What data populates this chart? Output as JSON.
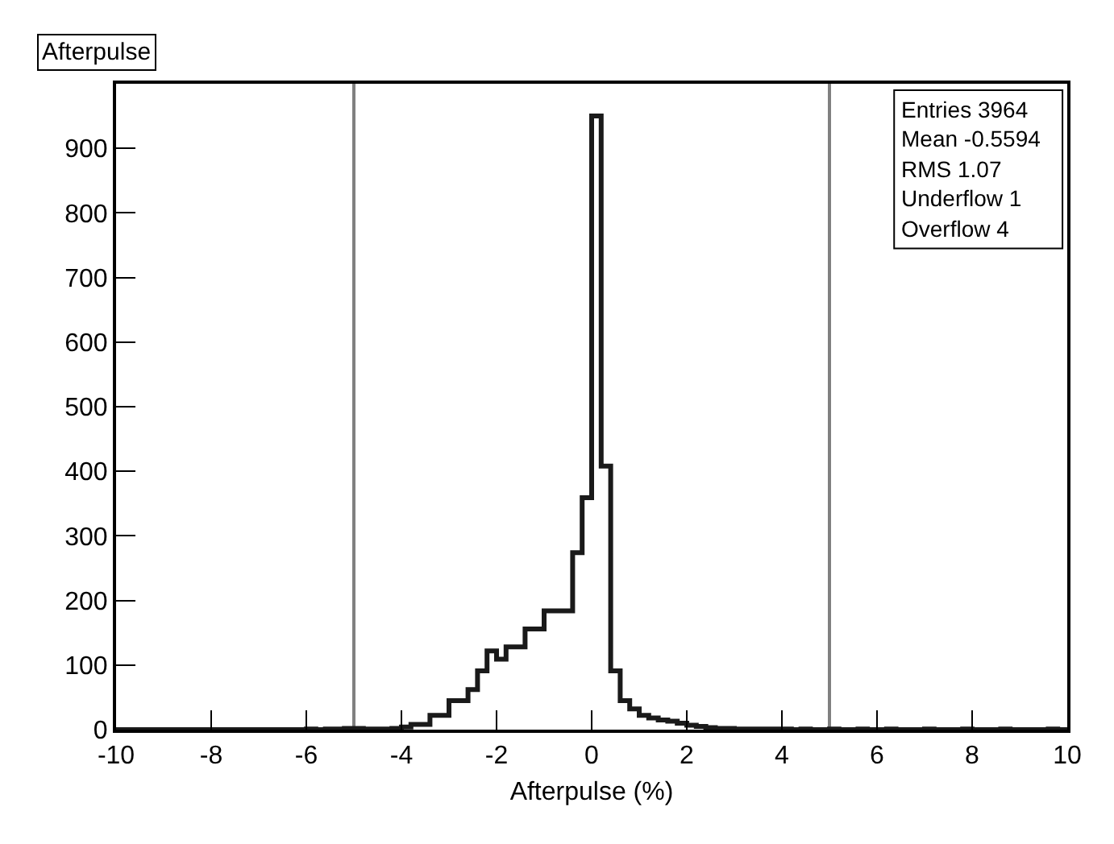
{
  "chart_data": {
    "type": "histogram",
    "title": "Afterpulse",
    "xlabel": "Afterpulse (%)",
    "bins": [
      -10,
      -9.8,
      -9.6,
      -9.4,
      -9.2,
      -9,
      -8.8,
      -8.6,
      -8.4,
      -8.2,
      -8,
      -7.8,
      -7.6,
      -7.4,
      -7.2,
      -7,
      -6.8,
      -6.6,
      -6.4,
      -6.2,
      -6,
      -5.8,
      -5.6,
      -5.4,
      -5.2,
      -5,
      -4.8,
      -4.6,
      -4.4,
      -4.2,
      -4,
      -3.8,
      -3.6,
      -3.4,
      -3.2,
      -3,
      -2.8,
      -2.6,
      -2.4,
      -2.2,
      -2,
      -1.8,
      -1.6,
      -1.4,
      -1.2,
      -1,
      -0.8,
      -0.6,
      -0.4,
      -0.2,
      0,
      0.2,
      0.4,
      0.6,
      0.8,
      1,
      1.2,
      1.4,
      1.6,
      1.8,
      2,
      2.2,
      2.4,
      2.6,
      2.8,
      3,
      3.2,
      3.4,
      3.6,
      3.8,
      4,
      4.2,
      4.4,
      4.6,
      4.8,
      5,
      5.2,
      5.4,
      5.6,
      5.8,
      6,
      6.2,
      6.4,
      6.6,
      6.8,
      7,
      7.2,
      7.4,
      7.6,
      7.8,
      8,
      8.2,
      8.4,
      8.6,
      8.8,
      9,
      9.2,
      9.4,
      9.6,
      9.8,
      10
    ],
    "values": [
      0,
      0,
      0,
      0,
      0,
      0,
      0,
      0,
      0,
      0,
      0,
      0,
      0,
      0,
      0,
      0,
      0,
      0,
      0,
      0,
      1,
      0,
      1,
      1,
      2,
      2,
      1,
      1,
      1,
      2,
      4,
      8,
      8,
      22,
      22,
      45,
      45,
      62,
      91,
      122,
      109,
      128,
      128,
      156,
      156,
      184,
      184,
      184,
      274,
      359,
      950,
      408,
      91,
      45,
      32,
      22,
      18,
      15,
      13,
      10,
      7,
      5,
      3,
      2,
      2,
      1,
      1,
      1,
      1,
      1,
      1,
      0,
      1,
      0,
      0,
      1,
      0,
      0,
      1,
      0,
      0,
      1,
      0,
      0,
      0,
      1,
      0,
      0,
      0,
      1,
      0,
      0,
      0,
      1,
      0,
      0,
      0,
      0,
      1,
      0
    ],
    "color": "#1a1a1a",
    "xlim": [
      -10,
      10
    ],
    "xticks": [
      -10,
      -8,
      -6,
      -4,
      -2,
      0,
      2,
      4,
      6,
      8,
      10
    ],
    "ylim": [
      0,
      1000
    ],
    "yticks": [
      0,
      100,
      200,
      300,
      400,
      500,
      600,
      700,
      800,
      900
    ],
    "grid": false,
    "ref_lines": [
      {
        "axis": "x",
        "value": -5,
        "color": "#808080"
      },
      {
        "axis": "x",
        "value": 5,
        "color": "#808080"
      }
    ],
    "annotations": [
      "Entries 3964",
      "Mean -0.5594",
      "RMS 1.07",
      "Underflow 1",
      "Overflow 4"
    ]
  }
}
